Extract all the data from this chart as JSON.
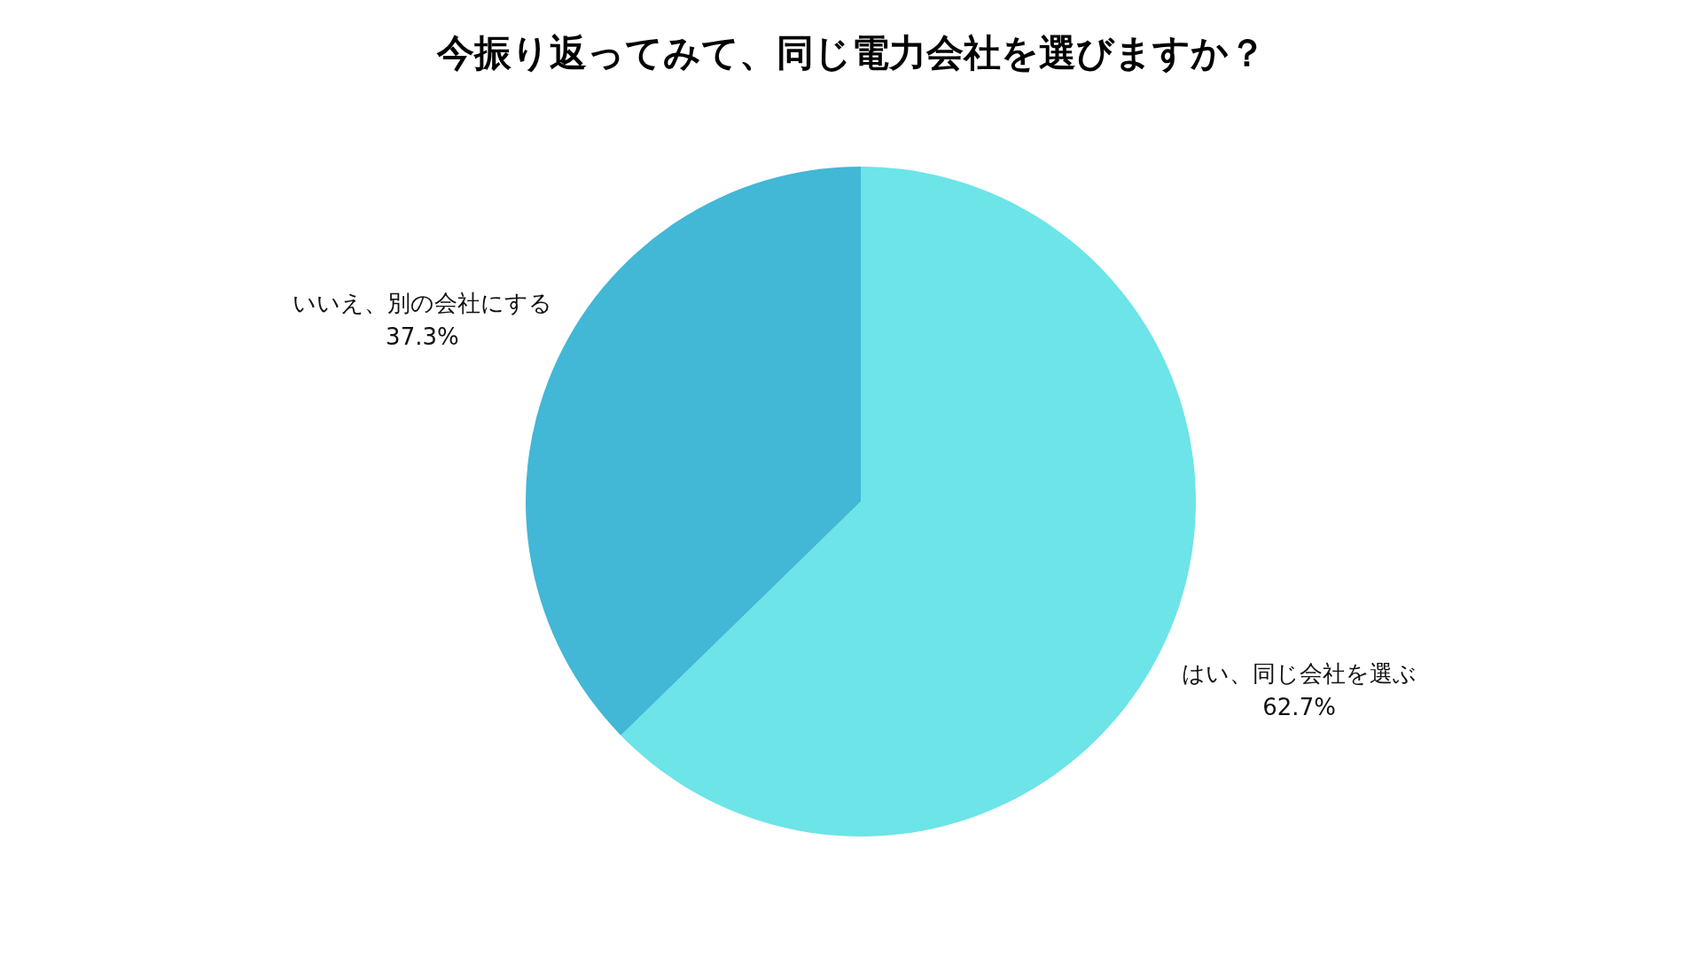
{
  "chart_data": {
    "type": "pie",
    "title": "今振り返ってみて、同じ電力会社を選びますか？",
    "categories": [
      "はい、同じ会社を選ぶ",
      "いいえ、別の会社にする"
    ],
    "values": [
      62.7,
      37.3
    ],
    "colors": [
      "#6ce4e8",
      "#42b7d6"
    ],
    "value_labels": [
      "62.7%",
      "37.3%"
    ]
  }
}
